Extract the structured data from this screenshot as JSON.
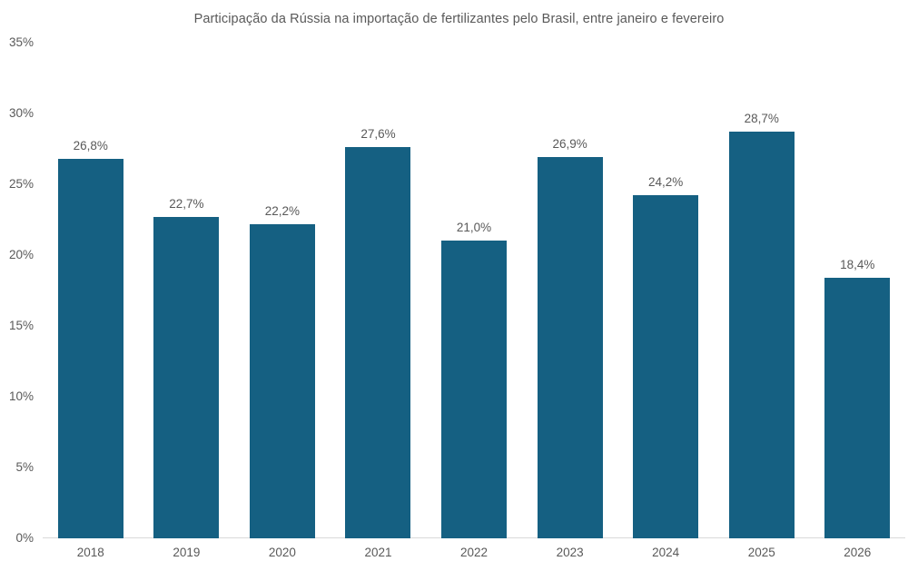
{
  "chart_data": {
    "type": "bar",
    "title": "Participação da Rússia na importação de fertilizantes pelo Brasil, entre janeiro e fevereiro",
    "categories": [
      "2018",
      "2019",
      "2020",
      "2021",
      "2022",
      "2023",
      "2024",
      "2025",
      "2026"
    ],
    "values": [
      26.8,
      22.7,
      22.2,
      27.6,
      21.0,
      26.9,
      24.2,
      28.7,
      18.4
    ],
    "value_labels": [
      "26,8%",
      "22,7%",
      "22,2%",
      "27,6%",
      "21,0%",
      "26,9%",
      "24,2%",
      "28,7%",
      "18,4%"
    ],
    "xlabel": "",
    "ylabel": "",
    "ylim": [
      0,
      35
    ],
    "y_tick_step": 5,
    "y_tick_labels": [
      "0%",
      "5%",
      "10%",
      "15%",
      "20%",
      "25%",
      "30%",
      "35%"
    ],
    "grid": false,
    "legend_position": "none",
    "colors": {
      "bar": "#156082",
      "text": "#595959",
      "axis_line": "#D9D9D9",
      "background": "#FFFFFF"
    }
  },
  "layout_note": ""
}
